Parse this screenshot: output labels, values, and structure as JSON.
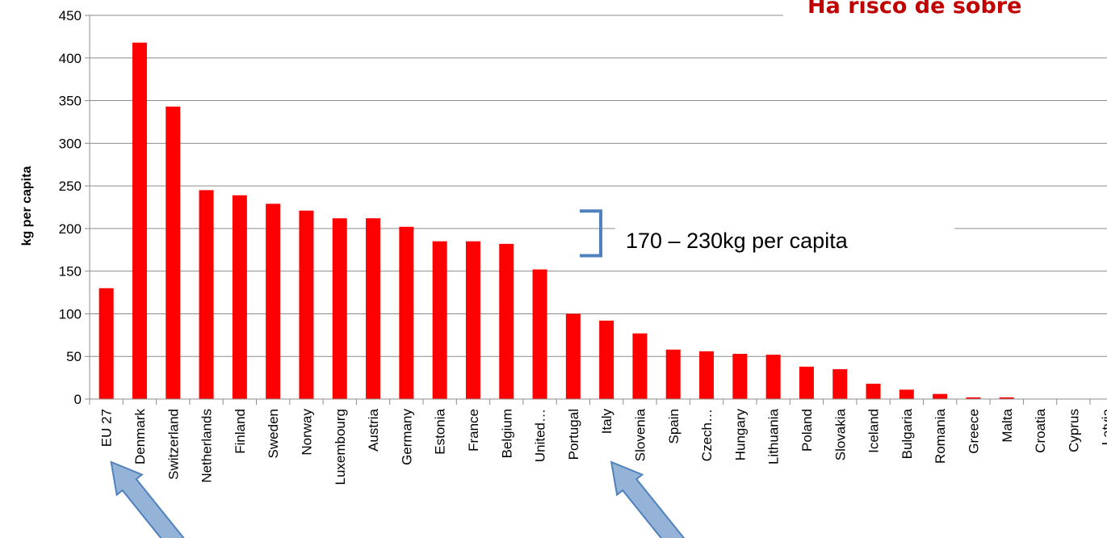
{
  "chart_data": {
    "type": "bar",
    "title": "Há risco de sobre",
    "ylabel": "kg per capita",
    "xlabel": "",
    "ylim": [
      0,
      450
    ],
    "yticks": [
      0,
      50,
      100,
      150,
      200,
      250,
      300,
      350,
      400,
      450
    ],
    "grid": true,
    "legend": "none",
    "categories": [
      "EU 27",
      "Denmark",
      "Switzerland",
      "Netherlands",
      "Finland",
      "Sweden",
      "Norway",
      "Luxembourg",
      "Austria",
      "Germany",
      "Estonia",
      "France",
      "Belgium",
      "United…",
      "Portugal",
      "Italy",
      "Slovenia",
      "Spain",
      "Czech…",
      "Hungary",
      "Lithuania",
      "Poland",
      "Slovakia",
      "Iceland",
      "Bulgaria",
      "Romania",
      "Greece",
      "Malta",
      "Croatia",
      "Cyprus",
      "Latvia"
    ],
    "values": [
      130,
      418,
      343,
      245,
      239,
      229,
      221,
      212,
      212,
      202,
      185,
      185,
      182,
      152,
      100,
      92,
      77,
      58,
      56,
      53,
      52,
      38,
      35,
      18,
      11,
      6,
      2,
      2,
      0,
      0,
      0
    ],
    "annotation": "170 – 230kg per capita",
    "annotation_range": [
      170,
      230
    ],
    "highlighted_categories": [
      "EU 27",
      "Italy"
    ],
    "colors": {
      "bar": "#ff0000",
      "title": "#c00000",
      "bracket": "#4f81bd",
      "arrow_fill": "#95b3d7",
      "arrow_stroke": "#4f81bd",
      "grid": "#8c8c8c",
      "axis": "#8c8c8c"
    }
  }
}
